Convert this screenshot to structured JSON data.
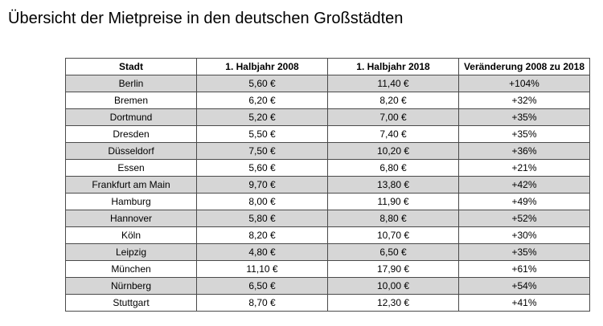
{
  "page": {
    "title": "Übersicht der Mietpreise in den deutschen Großstädten"
  },
  "table": {
    "headers": [
      "Stadt",
      "1. Halbjahr 2008",
      "1. Halbjahr 2018",
      "Veränderung 2008 zu 2018"
    ],
    "rows": [
      [
        "Berlin",
        "5,60 €",
        "11,40 €",
        "+104%"
      ],
      [
        "Bremen",
        "6,20 €",
        "8,20 €",
        "+32%"
      ],
      [
        "Dortmund",
        "5,20 €",
        "7,00 €",
        "+35%"
      ],
      [
        "Dresden",
        "5,50 €",
        "7,40 €",
        "+35%"
      ],
      [
        "Düsseldorf",
        "7,50 €",
        "10,20 €",
        "+36%"
      ],
      [
        "Essen",
        "5,60 €",
        "6,80 €",
        "+21%"
      ],
      [
        "Frankfurt am Main",
        "9,70 €",
        "13,80 €",
        "+42%"
      ],
      [
        "Hamburg",
        "8,00 €",
        "11,90 €",
        "+49%"
      ],
      [
        "Hannover",
        "5,80 €",
        "8,80 €",
        "+52%"
      ],
      [
        "Köln",
        "8,20 €",
        "10,70 €",
        "+30%"
      ],
      [
        "Leipzig",
        "4,80 €",
        "6,50 €",
        "+35%"
      ],
      [
        "München",
        "11,10 €",
        "17,90 €",
        "+61%"
      ],
      [
        "Nürnberg",
        "6,50 €",
        "10,00 €",
        "+54%"
      ],
      [
        "Stuttgart",
        "8,70 €",
        "12,30 €",
        "+41%"
      ]
    ],
    "colors": {
      "shaded_row": "#d6d6d6",
      "plain_row": "#ffffff",
      "border": "#4a4a4a"
    }
  }
}
